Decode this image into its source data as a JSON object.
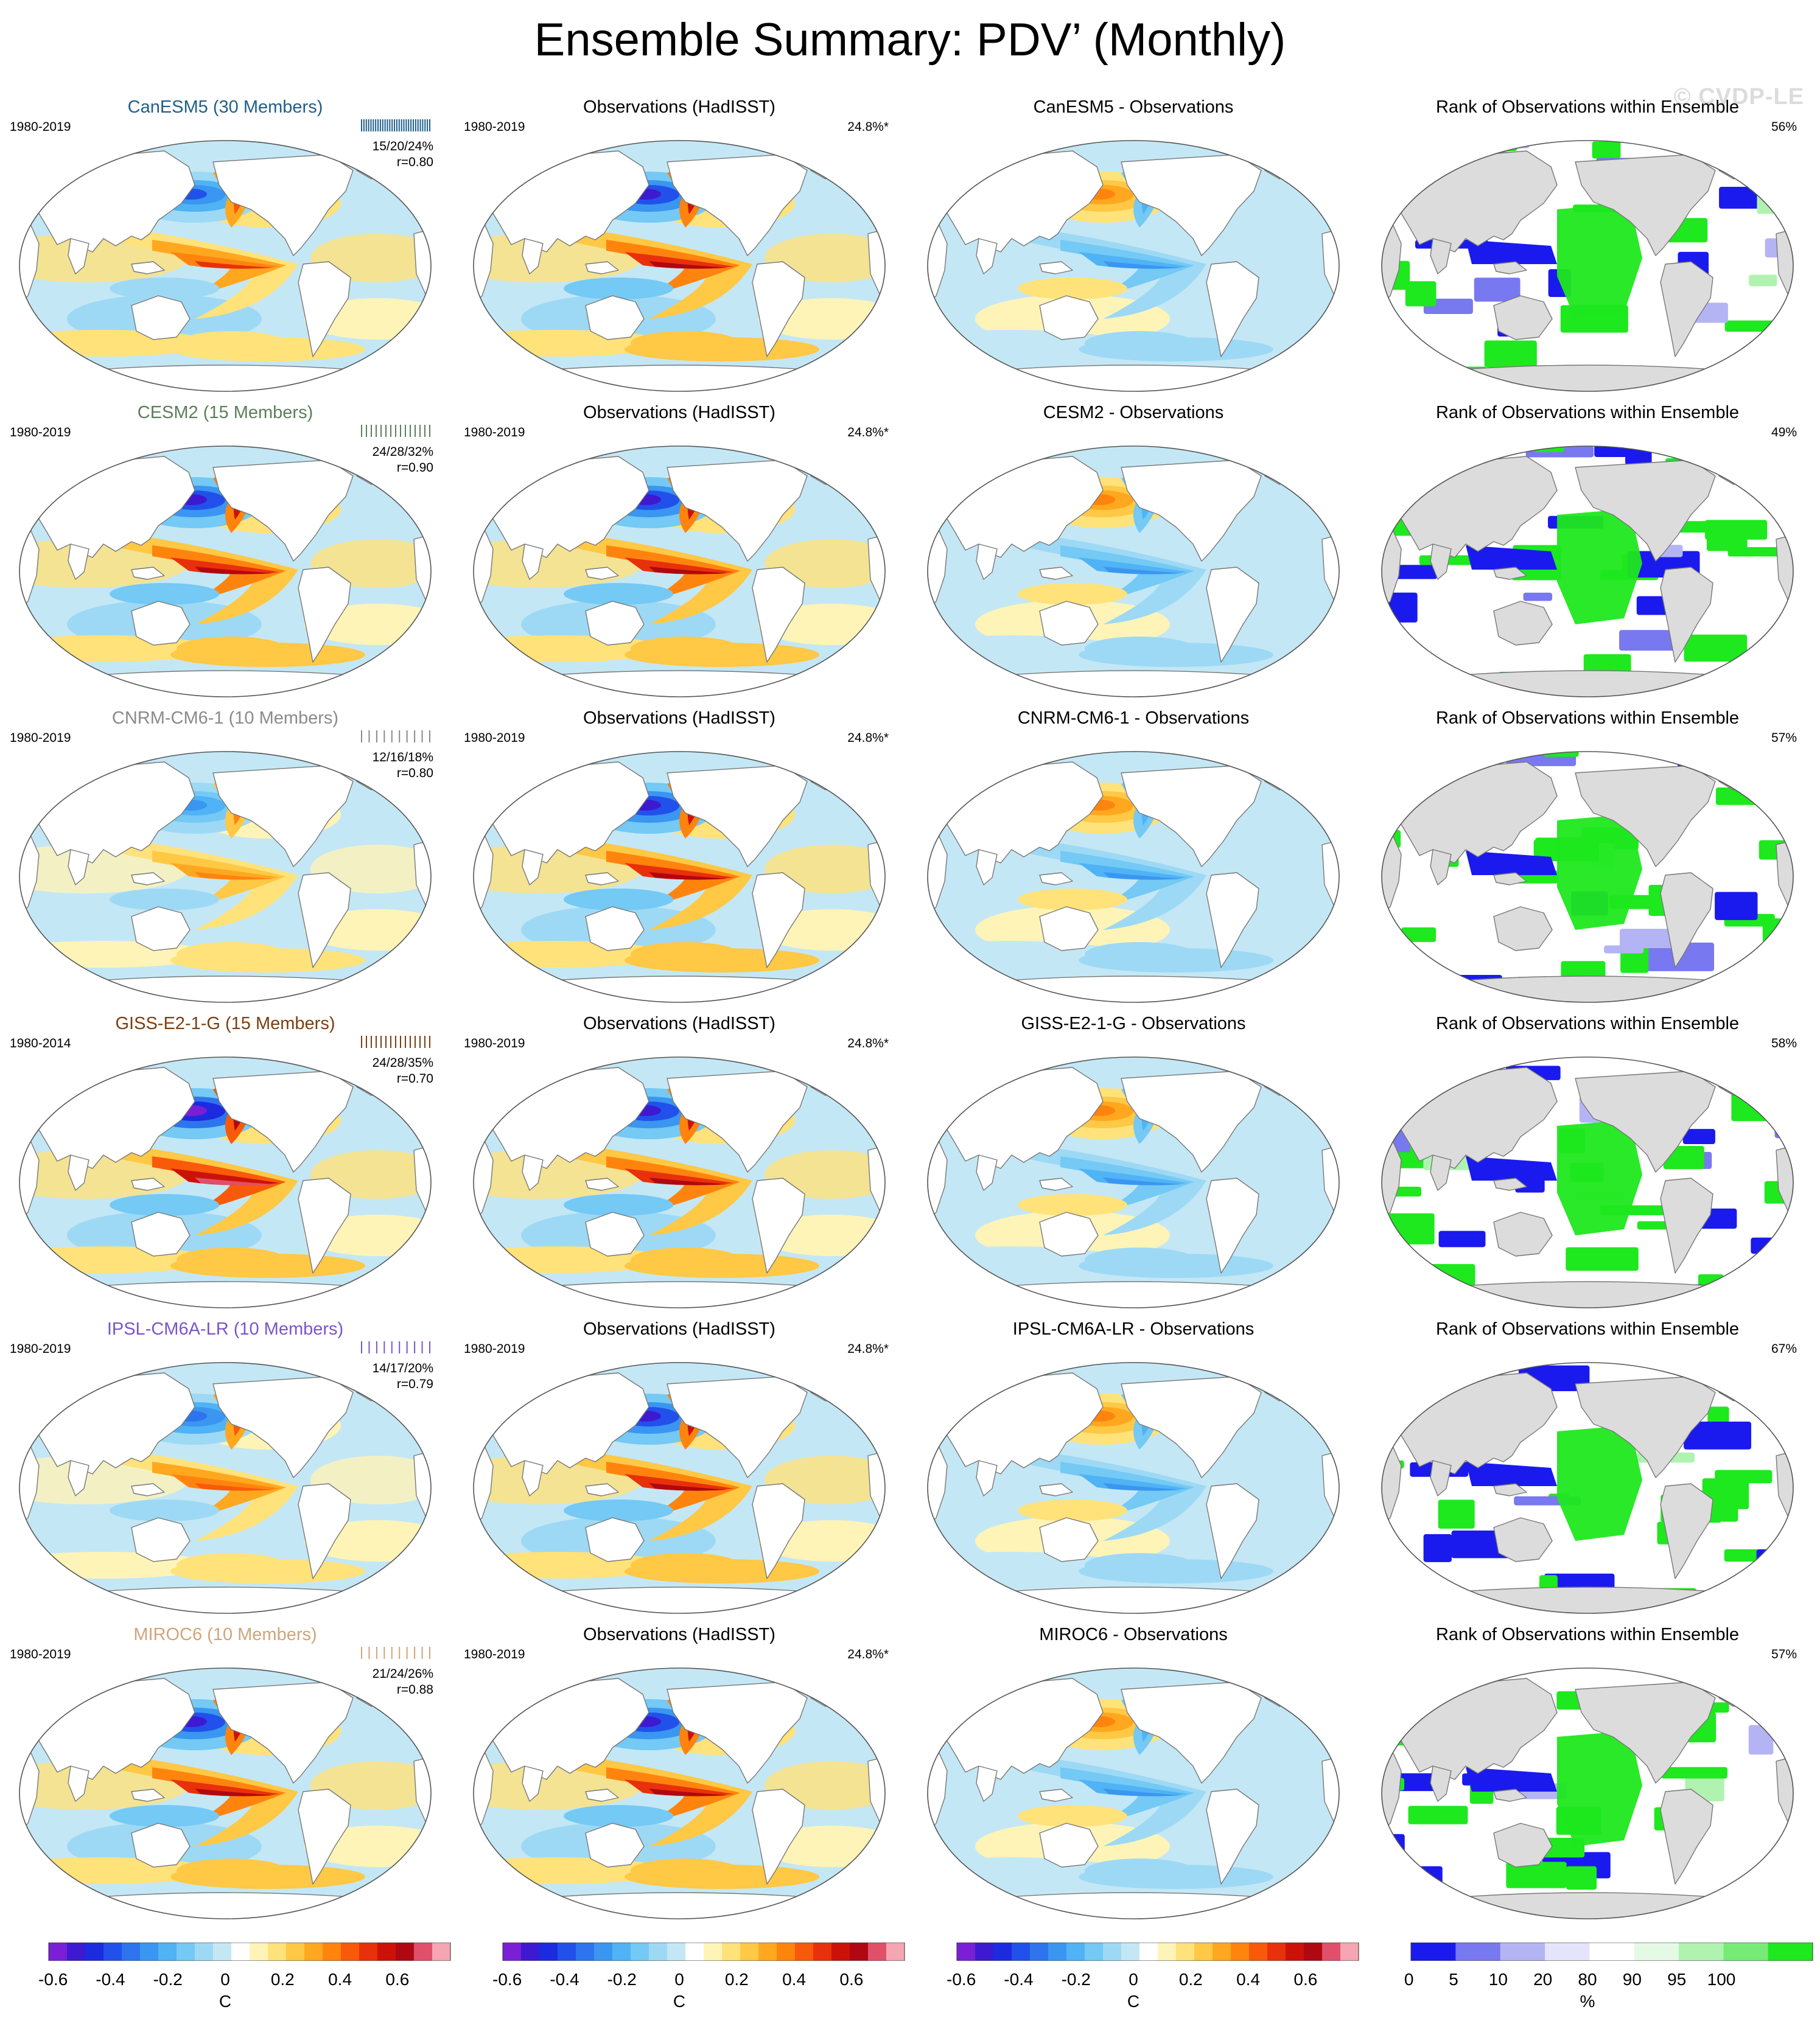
{
  "title": "Ensemble Summary: PDV’ (Monthly)",
  "watermark": "© CVDP-LE",
  "observations_title": "Observations (HadISST)",
  "observations_period": "1980-2019",
  "observations_stat": "24.8%*",
  "rank_title": "Rank of Observations within Ensemble",
  "colors": {
    "background": "#ffffff",
    "land_gray": "#dcdcdc",
    "coastline": "#777777"
  },
  "rows": [
    {
      "model": "CanESM5 (30 Members)",
      "model_color": "#1f5f8b",
      "model_period": "1980-2019",
      "model_stats": "15/20/24%",
      "model_r": "r=0.80",
      "diff_title": "CanESM5 - Observations",
      "rank_percent": "56%",
      "anomaly_strength": 0.75
    },
    {
      "model": "CESM2 (15 Members)",
      "model_color": "#5b7f5b",
      "model_period": "1980-2019",
      "model_stats": "24/28/32%",
      "model_r": "r=0.90",
      "diff_title": "CESM2 - Observations",
      "rank_percent": "49%",
      "anomaly_strength": 1.0
    },
    {
      "model": "CNRM-CM6-1 (10 Members)",
      "model_color": "#8a8a8a",
      "model_period": "1980-2019",
      "model_stats": "12/16/18%",
      "model_r": "r=0.80",
      "diff_title": "CNRM-CM6-1 - Observations",
      "rank_percent": "57%",
      "anomaly_strength": 0.6
    },
    {
      "model": "GISS-E2-1-G (15 Members)",
      "model_color": "#7a3f12",
      "model_period": "1980-2014",
      "model_stats": "24/28/35%",
      "model_r": "r=0.70",
      "diff_title": "GISS-E2-1-G - Observations",
      "rank_percent": "58%",
      "anomaly_strength": 1.1
    },
    {
      "model": "IPSL-CM6A-LR (10 Members)",
      "model_color": "#7b55c9",
      "model_period": "1980-2019",
      "model_stats": "14/17/20%",
      "model_r": "r=0.79",
      "diff_title": "IPSL-CM6A-LR - Observations",
      "rank_percent": "67%",
      "anomaly_strength": 0.7
    },
    {
      "model": "MIROC6 (10 Members)",
      "model_color": "#d0a57a",
      "model_period": "1980-2019",
      "model_stats": "21/24/26%",
      "model_r": "r=0.88",
      "diff_title": "MIROC6 - Observations",
      "rank_percent": "57%",
      "anomaly_strength": 0.95
    }
  ],
  "temperature_colorbar": {
    "ticks": [
      "-0.6",
      "-0.4",
      "-0.2",
      "0",
      "0.2",
      "0.4",
      "0.6"
    ],
    "tick_values": [
      -0.6,
      -0.4,
      -0.2,
      0,
      0.2,
      0.4,
      0.6
    ],
    "range": [
      -0.7,
      0.7
    ],
    "unit": "C",
    "colors": [
      "#7a1fd6",
      "#3d1ad2",
      "#1c2ae0",
      "#2151ea",
      "#2d74ee",
      "#3a96f0",
      "#4fb3f5",
      "#74c9f5",
      "#9dd9f5",
      "#c4e7f5",
      "#ffffff",
      "#fff4b8",
      "#ffe27a",
      "#ffc845",
      "#ffa81f",
      "#ff840e",
      "#f85a0a",
      "#e8300b",
      "#cc1208",
      "#b00812",
      "#e0506a",
      "#f5a6b2"
    ]
  },
  "rank_colorbar": {
    "ticks": [
      "0",
      "5",
      "10",
      "20",
      "80",
      "90",
      "95",
      "100"
    ],
    "tick_values": [
      0,
      5,
      10,
      20,
      80,
      90,
      95,
      100
    ],
    "unit": "%",
    "categories": [
      {
        "color": "#1a1aee"
      },
      {
        "color": "#7878f0"
      },
      {
        "color": "#b4b4f4"
      },
      {
        "color": "#e4e4fa"
      },
      {
        "color": "#ffffff"
      },
      {
        "color": "#e4fae4"
      },
      {
        "color": "#b0f3b0"
      },
      {
        "color": "#76ec76"
      },
      {
        "color": "#1ee81e"
      }
    ]
  }
}
